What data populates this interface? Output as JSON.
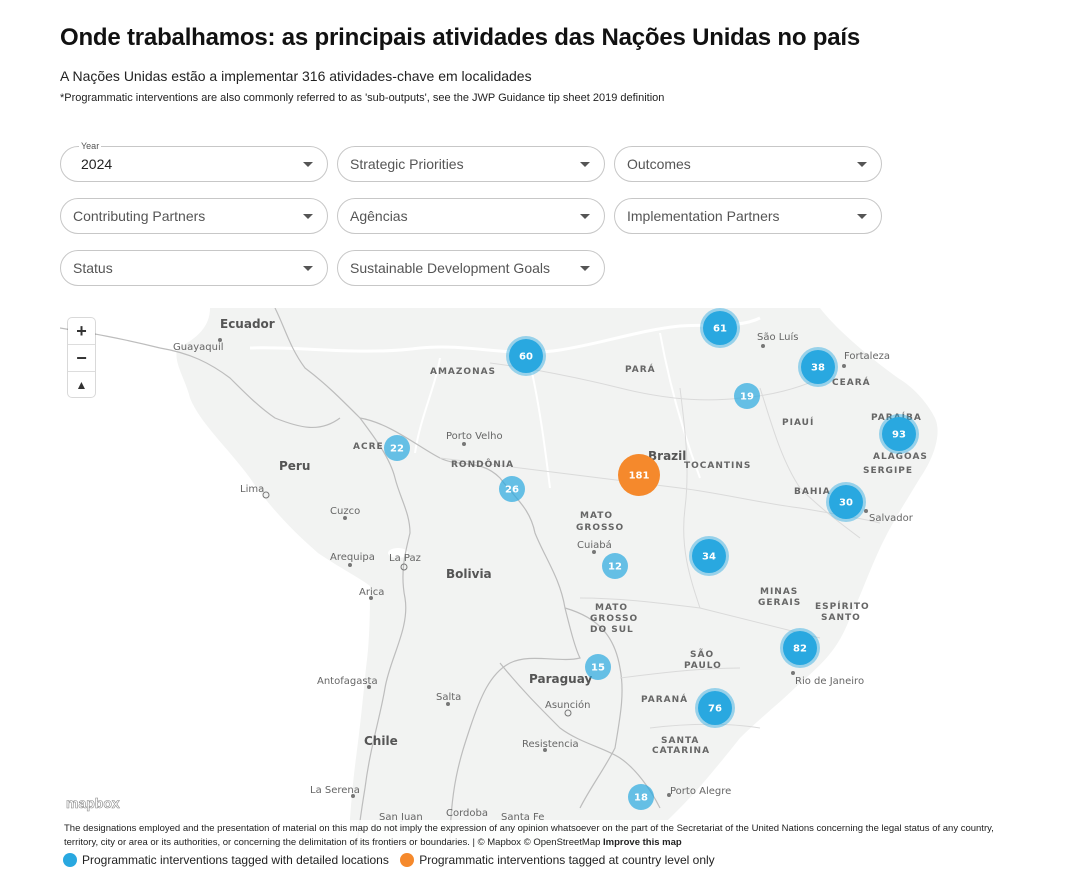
{
  "header": {
    "title": "Onde trabalhamos: as principais atividades das Nações Unidas no país",
    "subtitle": "A Nações Unidas estão a implementar 316 atividades-chave em localidades",
    "footnote": "*Programmatic interventions are also commonly referred to as 'sub-outputs', see the JWP Guidance tip sheet 2019 definition"
  },
  "filters": {
    "year": {
      "label": "Year",
      "value": "2024"
    },
    "strategic_priorities": "Strategic Priorities",
    "outcomes": "Outcomes",
    "contributing_partners": "Contributing Partners",
    "agencias": "Agências",
    "implementation_partners": "Implementation Partners",
    "status": "Status",
    "sdg": "Sustainable Development Goals"
  },
  "map": {
    "zoom_in": "+",
    "zoom_out": "−",
    "compass": "▲",
    "logo": "mapbox",
    "clusters": [
      {
        "count": "61",
        "type": "detailed"
      },
      {
        "count": "60",
        "type": "detailed"
      },
      {
        "count": "38",
        "type": "detailed"
      },
      {
        "count": "19",
        "type": "detailed"
      },
      {
        "count": "93",
        "type": "detailed"
      },
      {
        "count": "22",
        "type": "detailed"
      },
      {
        "count": "181",
        "type": "country"
      },
      {
        "count": "26",
        "type": "detailed"
      },
      {
        "count": "30",
        "type": "detailed"
      },
      {
        "count": "34",
        "type": "detailed"
      },
      {
        "count": "12",
        "type": "detailed"
      },
      {
        "count": "82",
        "type": "detailed"
      },
      {
        "count": "15",
        "type": "detailed"
      },
      {
        "count": "76",
        "type": "detailed"
      },
      {
        "count": "18",
        "type": "detailed"
      }
    ],
    "labels": {
      "ecuador": "Ecuador",
      "guayaquil": "Guayaquil",
      "amazonas": "AMAZONAS",
      "para": "PARÁ",
      "sao_luis": "São Luís",
      "fortaleza": "Fortaleza",
      "ceara": "CEARÁ",
      "piaui": "PIAUÍ",
      "paraiba": "PARAÍBA",
      "alagoas": "ALAGOAS",
      "sergipe": "SERGIPE",
      "acre": "ACRE",
      "porto_velho": "Porto Velho",
      "rondonia": "RONDÔNIA",
      "brazil": "Brazil",
      "tocantins": "TOCANTINS",
      "peru": "Peru",
      "lima": "Lima",
      "bahia": "BAHIA",
      "salvador": "Salvador",
      "cuzco": "Cuzco",
      "mato_grosso_1": "MATO",
      "mato_grosso_2": "GROSSO",
      "cuiaba": "Cuiabá",
      "arequipa": "Arequipa",
      "la_paz": "La Paz",
      "bolivia": "Bolivia",
      "arica": "Arica",
      "minas_1": "MINAS",
      "minas_2": "GERAIS",
      "espirito_1": "ESPÍRITO",
      "espirito_2": "SANTO",
      "ms_1": "MATO",
      "ms_2": "GROSSO",
      "ms_3": "DO SUL",
      "sao_paulo_1": "SÃO",
      "sao_paulo_2": "PAULO",
      "rio": "Rio de Janeiro",
      "antofagasta": "Antofagasta",
      "paraguay": "Paraguay",
      "parana": "PARANÁ",
      "salta": "Salta",
      "asuncion": "Asunción",
      "santa_catarina_1": "SANTA",
      "santa_catarina_2": "CATARINA",
      "chile": "Chile",
      "resistencia": "Resistencia",
      "la_serena": "La Serena",
      "porto_alegre": "Porto Alegre",
      "san_juan": "San Juan",
      "cordoba": "Cordoba",
      "santa_fe": "Santa Fe"
    },
    "attribution": "The designations employed and the presentation of material on this map do not imply the expression of any opinion whatsoever on the part of the Secretariat of the United Nations concerning the legal status of any country, territory, city or area or its authorities, or concerning the delimitation of its frontiers or boundaries. | © Mapbox © OpenStreetMap",
    "improve": "Improve this map"
  },
  "legend": {
    "detailed": "Programmatic interventions tagged with detailed locations",
    "country": "Programmatic interventions tagged at country level only"
  },
  "colors": {
    "detailed": "#29a8e0",
    "country": "#f5892c",
    "land": "#f2f3f2",
    "water": "#ffffff",
    "border": "#bdbdbd"
  }
}
